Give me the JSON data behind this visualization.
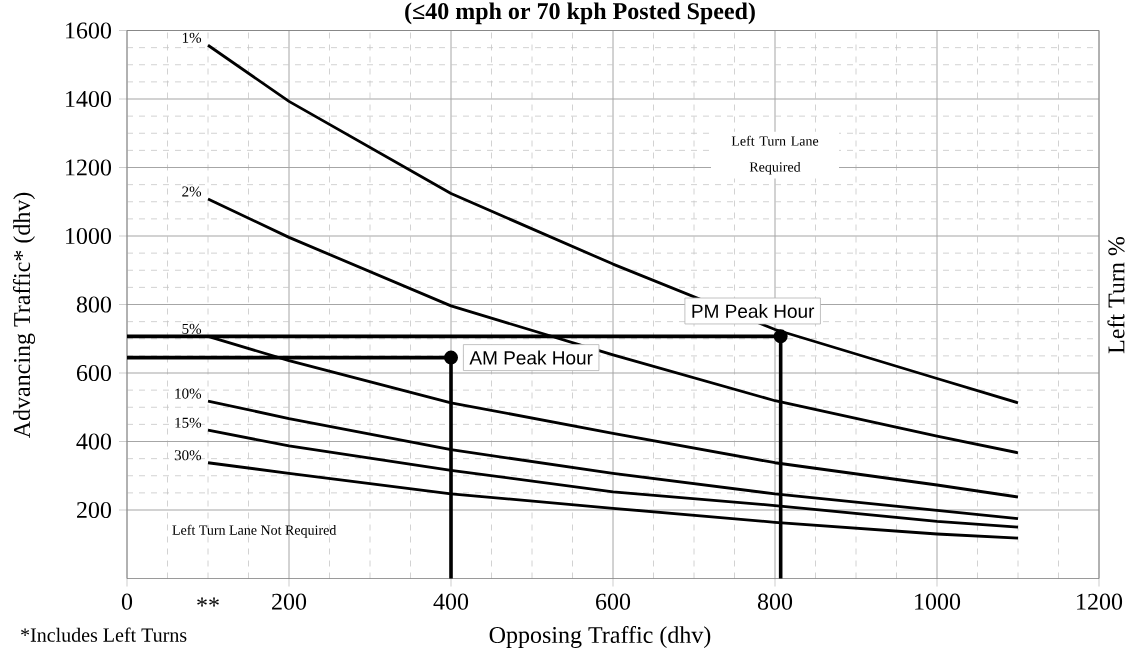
{
  "chart_data": {
    "type": "line",
    "title": "(≤40 mph or 70 kph Posted Speed)",
    "xlabel": "Opposing Traffic (dhv)",
    "ylabel": "Advancing Traffic* (dhv)",
    "y2label": "Left Turn %",
    "xlim": [
      0,
      1200
    ],
    "xticks": [
      0,
      200,
      400,
      600,
      800,
      1000,
      1200
    ],
    "ylim": [
      0,
      1600
    ],
    "yticks": [
      200,
      400,
      600,
      800,
      1000,
      1200,
      1400,
      1600
    ],
    "grid": true,
    "marker": "none",
    "x": [
      100,
      200,
      400,
      600,
      800,
      1000,
      1100
    ],
    "series": [
      {
        "name": "1%",
        "color": "#000000",
        "values": [
          1557,
          1393,
          1124,
          918,
          727,
          584,
          513
        ]
      },
      {
        "name": "2%",
        "color": "#000000",
        "values": [
          1108,
          996,
          796,
          653,
          519,
          416,
          367
        ]
      },
      {
        "name": "5%",
        "color": "#000000",
        "values": [
          707,
          636,
          513,
          424,
          338,
          273,
          238
        ]
      },
      {
        "name": "10%",
        "color": "#000000",
        "values": [
          518,
          467,
          376,
          307,
          247,
          199,
          175
        ]
      },
      {
        "name": "15%",
        "color": "#000000",
        "values": [
          433,
          387,
          316,
          253,
          213,
          167,
          150
        ]
      },
      {
        "name": "30%",
        "color": "#000000",
        "values": [
          338,
          307,
          247,
          205,
          164,
          130,
          118
        ]
      },
      {
        "type": "line",
        "color": "#000000",
        "x": [
          0,
          400,
          400
        ],
        "values": [
          645,
          645,
          0
        ]
      },
      {
        "type": "line",
        "color": "#000000",
        "x": [
          0,
          807,
          807
        ],
        "values": [
          707,
          707,
          0
        ]
      },
      {
        "type": "scatter",
        "color": "#000000",
        "marker": "circle",
        "x": [
          400,
          807
        ],
        "values": [
          645,
          707
        ]
      }
    ],
    "annotations": [
      {
        "text": "AM Peak Hour",
        "x": 400,
        "y": 645
      },
      {
        "text": "PM Peak Hour",
        "x": 807,
        "y": 707
      },
      "Left Turn Lane Required",
      "Left Turn Lane Not Required",
      "**",
      "*Includes Left Turns"
    ]
  }
}
